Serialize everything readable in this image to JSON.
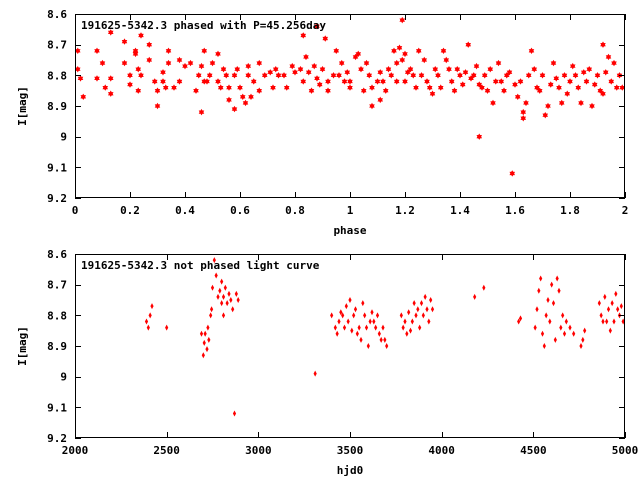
{
  "chart_data": [
    {
      "type": "scatter",
      "marker": "star",
      "color": "#ff0000",
      "title": "191625-5342.3 phased with P=45.256day",
      "xlabel": "phase",
      "ylabel": "I[mag]",
      "xlim": [
        0,
        2
      ],
      "ylim": [
        8.6,
        9.2
      ],
      "y_inverted": true,
      "x_ticks": [
        "0",
        "0.2",
        "0.4",
        "0.6",
        "0.8",
        "1",
        "1.2",
        "1.4",
        "1.6",
        "1.8",
        "2"
      ],
      "y_ticks": [
        "8.6",
        "8.7",
        "8.8",
        "8.9",
        "9",
        "9.1",
        "9.2"
      ],
      "points": [
        [
          0.01,
          8.72
        ],
        [
          0.01,
          8.78
        ],
        [
          0.02,
          8.81
        ],
        [
          0.03,
          8.87
        ],
        [
          0.08,
          8.72
        ],
        [
          0.08,
          8.81
        ],
        [
          0.1,
          8.76
        ],
        [
          0.11,
          8.84
        ],
        [
          0.13,
          8.66
        ],
        [
          0.13,
          8.81
        ],
        [
          0.13,
          8.86
        ],
        [
          0.18,
          8.69
        ],
        [
          0.18,
          8.76
        ],
        [
          0.2,
          8.83
        ],
        [
          0.2,
          8.8
        ],
        [
          0.22,
          8.72
        ],
        [
          0.22,
          8.73
        ],
        [
          0.23,
          8.78
        ],
        [
          0.23,
          8.85
        ],
        [
          0.24,
          8.67
        ],
        [
          0.24,
          8.8
        ],
        [
          0.27,
          8.7
        ],
        [
          0.27,
          8.75
        ],
        [
          0.29,
          8.82
        ],
        [
          0.3,
          8.85
        ],
        [
          0.3,
          8.9
        ],
        [
          0.32,
          8.82
        ],
        [
          0.32,
          8.79
        ],
        [
          0.33,
          8.84
        ],
        [
          0.34,
          8.72
        ],
        [
          0.34,
          8.76
        ],
        [
          0.36,
          8.84
        ],
        [
          0.38,
          8.82
        ],
        [
          0.38,
          8.75
        ],
        [
          0.4,
          8.77
        ],
        [
          0.42,
          8.76
        ],
        [
          0.44,
          8.85
        ],
        [
          0.45,
          8.8
        ],
        [
          0.46,
          8.92
        ],
        [
          0.46,
          8.77
        ],
        [
          0.47,
          8.72
        ],
        [
          0.47,
          8.82
        ],
        [
          0.48,
          8.82
        ],
        [
          0.49,
          8.8
        ],
        [
          0.5,
          8.76
        ],
        [
          0.52,
          8.73
        ],
        [
          0.52,
          8.82
        ],
        [
          0.53,
          8.84
        ],
        [
          0.54,
          8.78
        ],
        [
          0.55,
          8.8
        ],
        [
          0.56,
          8.88
        ],
        [
          0.56,
          8.84
        ],
        [
          0.58,
          8.8
        ],
        [
          0.58,
          8.91
        ],
        [
          0.59,
          8.78
        ],
        [
          0.6,
          8.84
        ],
        [
          0.61,
          8.87
        ],
        [
          0.62,
          8.89
        ],
        [
          0.63,
          8.77
        ],
        [
          0.63,
          8.8
        ],
        [
          0.64,
          8.87
        ],
        [
          0.65,
          8.82
        ],
        [
          0.67,
          8.85
        ],
        [
          0.67,
          8.76
        ],
        [
          0.69,
          8.8
        ],
        [
          0.71,
          8.79
        ],
        [
          0.72,
          8.84
        ],
        [
          0.73,
          8.78
        ],
        [
          0.74,
          8.8
        ],
        [
          0.76,
          8.8
        ],
        [
          0.77,
          8.84
        ],
        [
          0.79,
          8.77
        ],
        [
          0.8,
          8.79
        ],
        [
          0.82,
          8.78
        ],
        [
          0.83,
          8.82
        ],
        [
          0.83,
          8.67
        ],
        [
          0.84,
          8.74
        ],
        [
          0.85,
          8.79
        ],
        [
          0.86,
          8.85
        ],
        [
          0.87,
          8.77
        ],
        [
          0.88,
          8.81
        ],
        [
          0.88,
          8.64
        ],
        [
          0.89,
          8.83
        ],
        [
          0.9,
          8.78
        ],
        [
          0.91,
          8.68
        ],
        [
          0.92,
          8.82
        ],
        [
          0.92,
          8.85
        ],
        [
          0.94,
          8.8
        ],
        [
          0.95,
          8.72
        ],
        [
          0.96,
          8.8
        ],
        [
          0.97,
          8.76
        ],
        [
          0.98,
          8.82
        ],
        [
          0.99,
          8.79
        ],
        [
          1.0,
          8.82
        ],
        [
          1.0,
          8.84
        ],
        [
          1.02,
          8.74
        ],
        [
          1.03,
          8.73
        ],
        [
          1.04,
          8.78
        ],
        [
          1.05,
          8.85
        ],
        [
          1.06,
          8.76
        ],
        [
          1.07,
          8.8
        ],
        [
          1.08,
          8.9
        ],
        [
          1.08,
          8.84
        ],
        [
          1.1,
          8.82
        ],
        [
          1.11,
          8.79
        ],
        [
          1.11,
          8.88
        ],
        [
          1.12,
          8.82
        ],
        [
          1.13,
          8.85
        ],
        [
          1.14,
          8.78
        ],
        [
          1.15,
          8.8
        ],
        [
          1.16,
          8.72
        ],
        [
          1.17,
          8.76
        ],
        [
          1.17,
          8.82
        ],
        [
          1.18,
          8.71
        ],
        [
          1.19,
          8.62
        ],
        [
          1.19,
          8.75
        ],
        [
          1.2,
          8.73
        ],
        [
          1.2,
          8.82
        ],
        [
          1.21,
          8.79
        ],
        [
          1.22,
          8.78
        ],
        [
          1.23,
          8.8
        ],
        [
          1.24,
          8.84
        ],
        [
          1.25,
          8.72
        ],
        [
          1.26,
          8.8
        ],
        [
          1.27,
          8.75
        ],
        [
          1.28,
          8.82
        ],
        [
          1.29,
          8.84
        ],
        [
          1.3,
          8.86
        ],
        [
          1.31,
          8.78
        ],
        [
          1.32,
          8.8
        ],
        [
          1.33,
          8.84
        ],
        [
          1.34,
          8.72
        ],
        [
          1.35,
          8.75
        ],
        [
          1.36,
          8.78
        ],
        [
          1.37,
          8.82
        ],
        [
          1.38,
          8.85
        ],
        [
          1.39,
          8.78
        ],
        [
          1.4,
          8.8
        ],
        [
          1.41,
          8.83
        ],
        [
          1.42,
          8.79
        ],
        [
          1.43,
          8.7
        ],
        [
          1.44,
          8.81
        ],
        [
          1.45,
          8.8
        ],
        [
          1.46,
          8.77
        ],
        [
          1.47,
          8.83
        ],
        [
          1.47,
          9.0
        ],
        [
          1.48,
          8.84
        ],
        [
          1.49,
          8.8
        ],
        [
          1.5,
          8.85
        ],
        [
          1.51,
          8.78
        ],
        [
          1.52,
          8.89
        ],
        [
          1.53,
          8.82
        ],
        [
          1.54,
          8.76
        ],
        [
          1.55,
          8.82
        ],
        [
          1.56,
          8.85
        ],
        [
          1.57,
          8.8
        ],
        [
          1.58,
          8.79
        ],
        [
          1.59,
          9.12
        ],
        [
          1.6,
          8.83
        ],
        [
          1.61,
          8.87
        ],
        [
          1.62,
          8.82
        ],
        [
          1.63,
          8.94
        ],
        [
          1.63,
          8.92
        ],
        [
          1.64,
          8.89
        ],
        [
          1.65,
          8.8
        ],
        [
          1.66,
          8.72
        ],
        [
          1.67,
          8.78
        ],
        [
          1.68,
          8.84
        ],
        [
          1.69,
          8.85
        ],
        [
          1.7,
          8.8
        ],
        [
          1.71,
          8.93
        ],
        [
          1.72,
          8.9
        ],
        [
          1.73,
          8.83
        ],
        [
          1.74,
          8.76
        ],
        [
          1.75,
          8.81
        ],
        [
          1.76,
          8.84
        ],
        [
          1.77,
          8.89
        ],
        [
          1.78,
          8.8
        ],
        [
          1.79,
          8.86
        ],
        [
          1.8,
          8.82
        ],
        [
          1.81,
          8.77
        ],
        [
          1.82,
          8.8
        ],
        [
          1.83,
          8.84
        ],
        [
          1.84,
          8.89
        ],
        [
          1.85,
          8.79
        ],
        [
          1.86,
          8.82
        ],
        [
          1.87,
          8.78
        ],
        [
          1.88,
          8.9
        ],
        [
          1.89,
          8.83
        ],
        [
          1.9,
          8.8
        ],
        [
          1.91,
          8.85
        ],
        [
          1.92,
          8.7
        ],
        [
          1.92,
          8.86
        ],
        [
          1.93,
          8.79
        ],
        [
          1.94,
          8.74
        ],
        [
          1.95,
          8.82
        ],
        [
          1.96,
          8.76
        ],
        [
          1.97,
          8.84
        ],
        [
          1.98,
          8.8
        ],
        [
          1.99,
          8.84
        ]
      ]
    },
    {
      "type": "scatter",
      "marker": "diamond",
      "color": "#ff0000",
      "title": "191625-5342.3 not phased light curve",
      "xlabel": "hjd0",
      "ylabel": "I[mag]",
      "xlim": [
        2000,
        5000
      ],
      "ylim": [
        8.6,
        9.2
      ],
      "y_inverted": true,
      "x_ticks": [
        "2000",
        "2500",
        "3000",
        "3500",
        "4000",
        "4500",
        "5000"
      ],
      "y_ticks": [
        "8.6",
        "8.7",
        "8.8",
        "8.9",
        "9",
        "9.1",
        "9.2"
      ],
      "points": [
        [
          2390,
          8.82
        ],
        [
          2400,
          8.84
        ],
        [
          2410,
          8.8
        ],
        [
          2420,
          8.77
        ],
        [
          2500,
          8.84
        ],
        [
          2690,
          8.86
        ],
        [
          2700,
          8.93
        ],
        [
          2705,
          8.89
        ],
        [
          2710,
          8.86
        ],
        [
          2720,
          8.91
        ],
        [
          2725,
          8.84
        ],
        [
          2730,
          8.88
        ],
        [
          2740,
          8.8
        ],
        [
          2745,
          8.78
        ],
        [
          2750,
          8.71
        ],
        [
          2760,
          8.62
        ],
        [
          2770,
          8.67
        ],
        [
          2780,
          8.74
        ],
        [
          2790,
          8.72
        ],
        [
          2800,
          8.69
        ],
        [
          2810,
          8.74
        ],
        [
          2820,
          8.71
        ],
        [
          2830,
          8.76
        ],
        [
          2840,
          8.73
        ],
        [
          2850,
          8.75
        ],
        [
          2860,
          8.78
        ],
        [
          2870,
          9.12
        ],
        [
          2880,
          8.73
        ],
        [
          2890,
          8.75
        ],
        [
          2800,
          8.76
        ],
        [
          2810,
          8.8
        ],
        [
          3310,
          8.99
        ],
        [
          3400,
          8.8
        ],
        [
          3420,
          8.84
        ],
        [
          3430,
          8.86
        ],
        [
          3440,
          8.82
        ],
        [
          3450,
          8.79
        ],
        [
          3460,
          8.8
        ],
        [
          3470,
          8.84
        ],
        [
          3480,
          8.77
        ],
        [
          3490,
          8.82
        ],
        [
          3500,
          8.75
        ],
        [
          3510,
          8.85
        ],
        [
          3520,
          8.8
        ],
        [
          3530,
          8.78
        ],
        [
          3540,
          8.86
        ],
        [
          3550,
          8.84
        ],
        [
          3560,
          8.88
        ],
        [
          3570,
          8.76
        ],
        [
          3580,
          8.8
        ],
        [
          3590,
          8.84
        ],
        [
          3600,
          8.9
        ],
        [
          3610,
          8.82
        ],
        [
          3620,
          8.79
        ],
        [
          3630,
          8.82
        ],
        [
          3640,
          8.84
        ],
        [
          3650,
          8.8
        ],
        [
          3660,
          8.86
        ],
        [
          3670,
          8.88
        ],
        [
          3680,
          8.84
        ],
        [
          3690,
          8.88
        ],
        [
          3700,
          8.9
        ],
        [
          3780,
          8.8
        ],
        [
          3790,
          8.84
        ],
        [
          3800,
          8.82
        ],
        [
          3810,
          8.86
        ],
        [
          3820,
          8.79
        ],
        [
          3830,
          8.85
        ],
        [
          3840,
          8.82
        ],
        [
          3850,
          8.76
        ],
        [
          3860,
          8.8
        ],
        [
          3870,
          8.78
        ],
        [
          3880,
          8.84
        ],
        [
          3890,
          8.76
        ],
        [
          3900,
          8.8
        ],
        [
          3910,
          8.74
        ],
        [
          3920,
          8.78
        ],
        [
          3930,
          8.82
        ],
        [
          3940,
          8.75
        ],
        [
          3950,
          8.78
        ],
        [
          4180,
          8.74
        ],
        [
          4230,
          8.71
        ],
        [
          4420,
          8.82
        ],
        [
          4430,
          8.81
        ],
        [
          4510,
          8.84
        ],
        [
          4520,
          8.78
        ],
        [
          4530,
          8.72
        ],
        [
          4540,
          8.68
        ],
        [
          4550,
          8.86
        ],
        [
          4560,
          8.9
        ],
        [
          4570,
          8.8
        ],
        [
          4580,
          8.75
        ],
        [
          4590,
          8.82
        ],
        [
          4600,
          8.7
        ],
        [
          4610,
          8.76
        ],
        [
          4620,
          8.88
        ],
        [
          4630,
          8.68
        ],
        [
          4640,
          8.72
        ],
        [
          4650,
          8.84
        ],
        [
          4660,
          8.8
        ],
        [
          4670,
          8.86
        ],
        [
          4680,
          8.82
        ],
        [
          4700,
          8.84
        ],
        [
          4720,
          8.86
        ],
        [
          4760,
          8.9
        ],
        [
          4770,
          8.88
        ],
        [
          4780,
          8.85
        ],
        [
          4860,
          8.76
        ],
        [
          4870,
          8.8
        ],
        [
          4880,
          8.82
        ],
        [
          4890,
          8.74
        ],
        [
          4900,
          8.82
        ],
        [
          4910,
          8.78
        ],
        [
          4920,
          8.85
        ],
        [
          4930,
          8.76
        ],
        [
          4940,
          8.82
        ],
        [
          4950,
          8.73
        ],
        [
          4960,
          8.78
        ],
        [
          4970,
          8.8
        ],
        [
          4980,
          8.77
        ],
        [
          4990,
          8.82
        ]
      ]
    }
  ]
}
